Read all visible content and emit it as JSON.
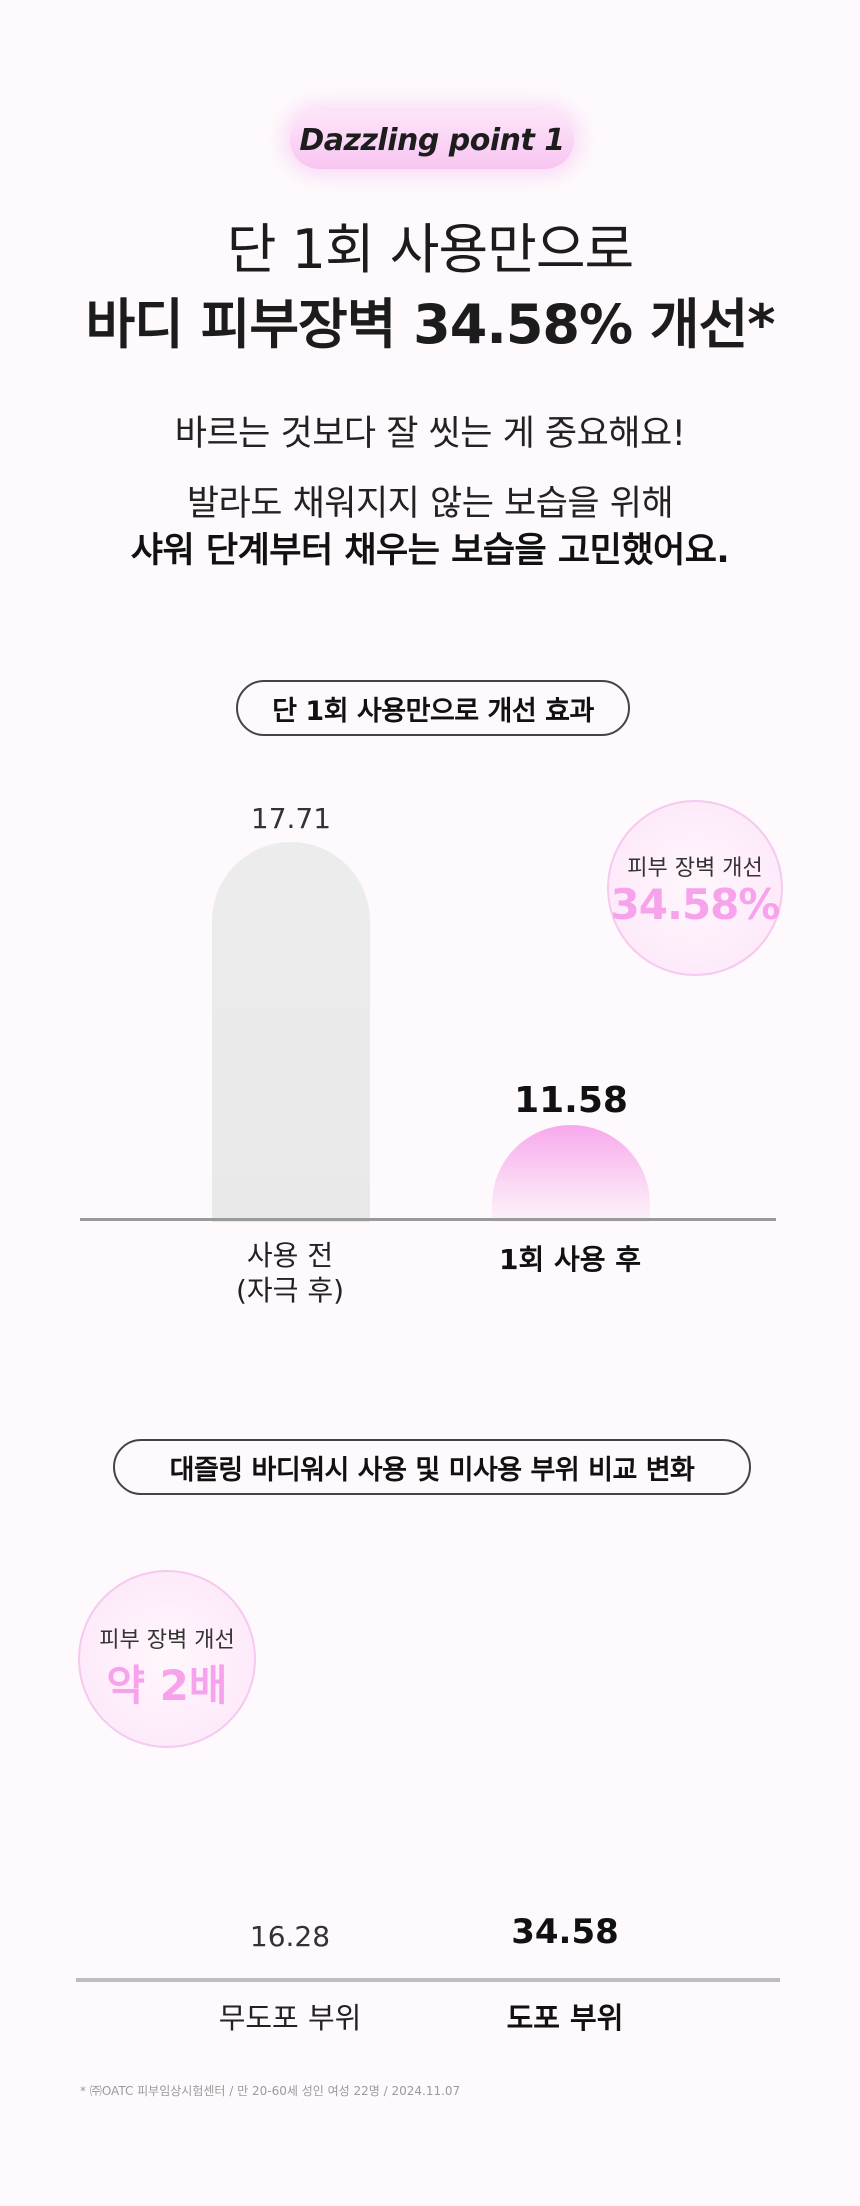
{
  "badge": "Dazzling point 1",
  "headline": {
    "line1": "단 1회 사용만으로",
    "line2": "바디 피부장벽 34.58% 개선*"
  },
  "subtext": {
    "line1": "바르는 것보다 잘 씻는 게 중요해요!",
    "line2": "발라도 채워지지 않는 보습을 위해",
    "line3": "샤워 단계부터 채우는 보습을 고민했어요."
  },
  "section1": {
    "pill": "단 1회 사용만으로 개선 효과",
    "circle_label": "피부 장벽 개선",
    "circle_value": "34.58%",
    "before_value": "17.71",
    "after_value": "11.58",
    "before_label_line1": "사용 전",
    "before_label_line2": "(자극 후)",
    "after_label": "1회 사용 후"
  },
  "section2": {
    "pill": "대즐링 바디워시 사용 및 미사용 부위 비교 변화",
    "circle_label": "피부 장벽 개선",
    "circle_value": "약 2배",
    "a_value": "16.28",
    "b_value": "34.58",
    "a_label": "무도포 부위",
    "b_label": "도포 부위"
  },
  "footnote": "* ㈜OATC 피부임상시험센터 / 만 20-60세 성인 여성 22명 / 2024.11.07",
  "chart_data": [
    {
      "type": "bar",
      "categories": [
        "사용 전 (자극 후)",
        "1회 사용 후"
      ],
      "values": [
        17.71,
        11.58
      ],
      "title": "단 1회 사용만으로 개선 효과"
    },
    {
      "type": "bar",
      "categories": [
        "무도포 부위",
        "도포 부위"
      ],
      "values": [
        16.28,
        34.58
      ],
      "title": "대즐링 바디워시 사용 및 미사용 부위 비교 변화"
    }
  ],
  "colors": {
    "accent_pink": "#f7a3ec",
    "bar_gray": "#ebebeb",
    "background": "#fdf9fc"
  }
}
